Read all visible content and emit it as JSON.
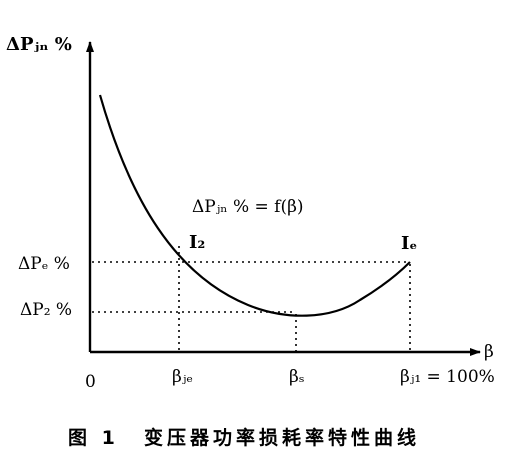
{
  "y_axis_label": "ΔPⱼₙ %",
  "x_axis_label": "β",
  "equation": "ΔPⱼₙ % = f(β)",
  "y_tick_upper": "ΔPₑ %",
  "y_tick_lower": "ΔP₂ %",
  "x_tick_origin": "0",
  "x_tick_1": "βⱼₑ",
  "x_tick_2": "βₛ",
  "x_tick_3": "βⱼ₁ = 100%",
  "point_left": "I₂",
  "point_right": "Iₑ",
  "caption_number": "图 1",
  "caption_text": "变压器功率损耗率特性曲线"
}
